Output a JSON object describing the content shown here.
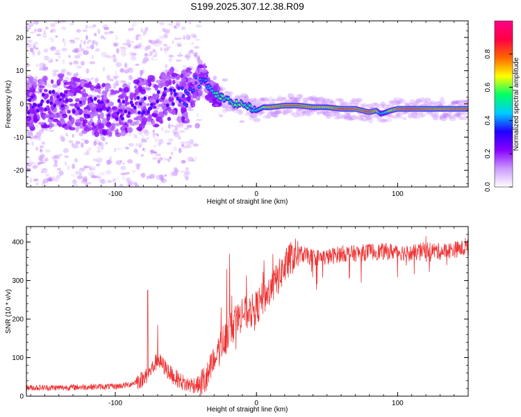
{
  "figure": {
    "title": "S199.2025.307.12.38.R09"
  },
  "chart_data": [
    {
      "type": "heatmap",
      "title": "S199.2025.307.12.38.R09",
      "xlabel": "Height of straight line (km)",
      "ylabel": "Frequency (Hz)",
      "xlim": [
        -163,
        150
      ],
      "ylim": [
        -25,
        25
      ],
      "xticks": [
        -100,
        0,
        100
      ],
      "yticks": [
        -20,
        -10,
        0,
        10,
        20
      ],
      "colorbar": {
        "label": "Normalized spectral amplitude",
        "range": [
          0,
          1
        ],
        "ticks": [
          0.0,
          0.2,
          0.4,
          0.6,
          0.8
        ],
        "tick_labels": [
          "0.0",
          "0.2",
          "0.4",
          "0.6",
          "0.8"
        ],
        "colormap": [
          "#ffffff",
          "#cc99ff",
          "#8800ff",
          "#2200ff",
          "#00ccff",
          "#00ff66",
          "#ffff00",
          "#ff6600",
          "#ff0044",
          "#ff0088"
        ]
      },
      "ridge": {
        "x": [
          -163,
          -140,
          -120,
          -100,
          -90,
          -80,
          -70,
          -60,
          -50,
          -45,
          -40,
          -37,
          -35,
          -32,
          -30,
          -25,
          -20,
          -15,
          -10,
          -5,
          0,
          5,
          10,
          20,
          30,
          40,
          50,
          60,
          70,
          75,
          80,
          85,
          88,
          92,
          95,
          100,
          110,
          120,
          130,
          140,
          150
        ],
        "freq": [
          0,
          1,
          -1,
          -2,
          -1,
          0,
          1,
          3,
          2,
          4,
          7,
          8,
          6,
          4,
          3,
          2,
          1,
          0,
          0,
          -1,
          -2,
          -1,
          -1,
          -0.5,
          -0.5,
          -1,
          -1,
          -1.5,
          -1.5,
          -2,
          -2.5,
          -2,
          -3,
          -2.5,
          -2,
          -1.5,
          -1.5,
          -1.5,
          -1.5,
          -1.5,
          -1.5
        ],
        "amplitude": [
          0.3,
          0.3,
          0.3,
          0.3,
          0.3,
          0.35,
          0.35,
          0.35,
          0.4,
          0.4,
          0.45,
          0.4,
          0.45,
          0.5,
          0.55,
          0.6,
          0.55,
          0.6,
          0.6,
          0.55,
          0.5,
          0.65,
          0.75,
          0.85,
          0.85,
          0.75,
          0.7,
          0.9,
          0.85,
          0.85,
          0.9,
          0.75,
          0.45,
          0.55,
          0.7,
          0.85,
          0.9,
          0.85,
          0.8,
          0.85,
          0.85
        ]
      }
    },
    {
      "type": "line",
      "xlabel": "Height of straight line (km)",
      "ylabel": "SNR (10 * v/v)",
      "xlim": [
        -163,
        150
      ],
      "ylim": [
        0,
        440
      ],
      "xticks": [
        -100,
        0,
        100
      ],
      "yticks": [
        0,
        100,
        200,
        300,
        400
      ],
      "series": [
        {
          "name": "SNR",
          "color": "#ee3333",
          "x": [
            -163,
            -140,
            -120,
            -100,
            -90,
            -80,
            -76,
            -70,
            -60,
            -50,
            -40,
            -35,
            -30,
            -25,
            -20,
            -15,
            -10,
            -5,
            0,
            5,
            10,
            15,
            20,
            25,
            30,
            40,
            50,
            60,
            70,
            80,
            90,
            100,
            110,
            120,
            130,
            140,
            150
          ],
          "values": [
            22,
            22,
            24,
            25,
            30,
            45,
            60,
            95,
            55,
            30,
            30,
            45,
            90,
            135,
            170,
            190,
            215,
            215,
            230,
            255,
            275,
            305,
            335,
            360,
            370,
            360,
            360,
            370,
            370,
            375,
            375,
            375,
            370,
            380,
            375,
            380,
            385
          ],
          "spikes": [
            {
              "x": -77,
              "y": 275
            },
            {
              "x": -19,
              "y": 370
            },
            {
              "x": -21,
              "y": 330
            },
            {
              "x": -70,
              "y": 185
            },
            {
              "x": 120,
              "y": 415
            },
            {
              "x": 148,
              "y": 410
            }
          ]
        }
      ]
    }
  ]
}
